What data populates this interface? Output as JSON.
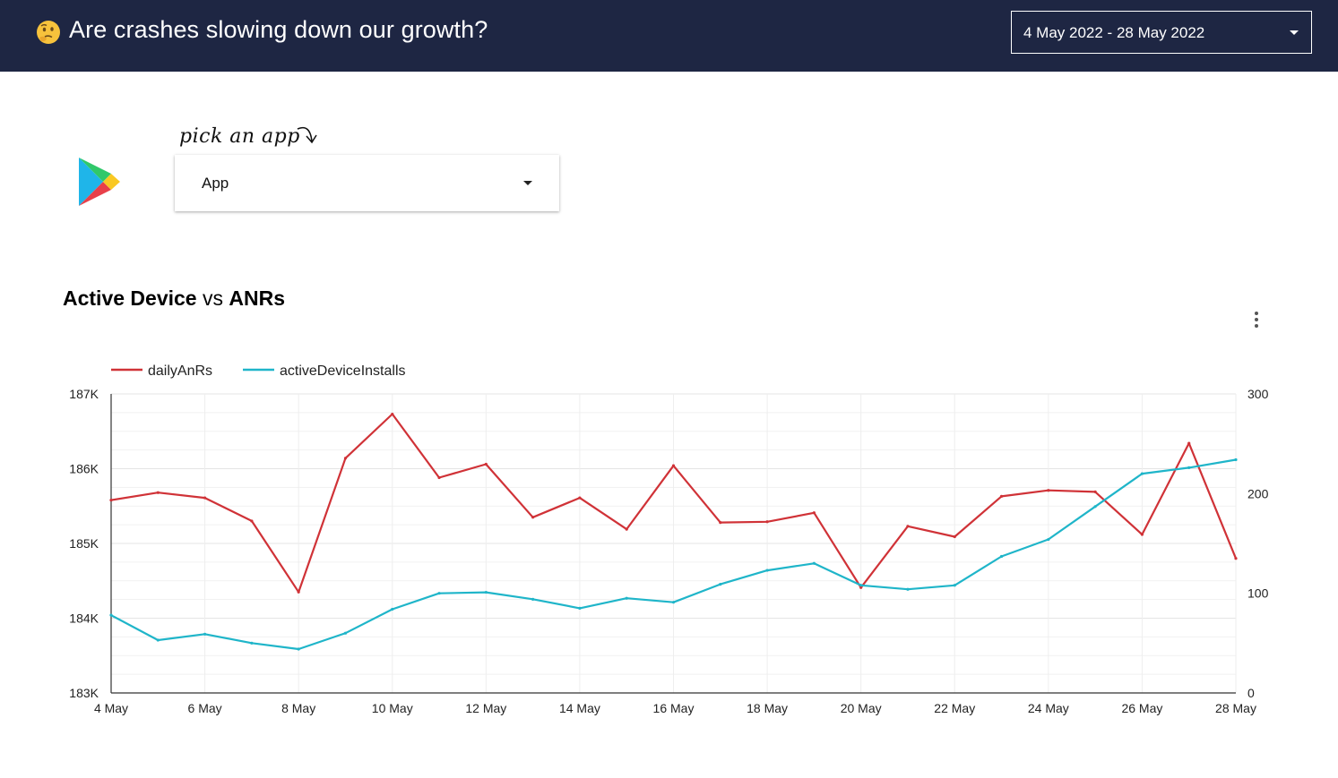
{
  "header": {
    "title": "Are crashes slowing down our growth?",
    "date_range": "4 May 2022 - 28 May 2022",
    "emoji_icon": "thinking-face-icon"
  },
  "app_picker": {
    "hint": "pick an app",
    "label": "App",
    "logo_icon": "google-play-icon"
  },
  "chart_title": {
    "part1": "Active Device",
    "part2": " vs ",
    "part3": "ANRs"
  },
  "colors": {
    "header_bg": "#1e2643",
    "anrs": "#d03237",
    "installs": "#1fb5c9"
  },
  "chart_data": {
    "type": "line",
    "x": [
      "4 May",
      "5 May",
      "6 May",
      "7 May",
      "8 May",
      "9 May",
      "10 May",
      "11 May",
      "12 May",
      "13 May",
      "14 May",
      "15 May",
      "16 May",
      "17 May",
      "18 May",
      "19 May",
      "20 May",
      "21 May",
      "22 May",
      "23 May",
      "24 May",
      "25 May",
      "26 May",
      "27 May",
      "28 May"
    ],
    "x_tick_labels": [
      "4 May",
      "6 May",
      "8 May",
      "10 May",
      "12 May",
      "14 May",
      "16 May",
      "18 May",
      "20 May",
      "22 May",
      "24 May",
      "26 May",
      "28 May"
    ],
    "series": [
      {
        "name": "dailyAnRs",
        "axis": "left",
        "color": "#d03237",
        "values": [
          185580,
          185680,
          185610,
          185300,
          184350,
          186140,
          186730,
          185880,
          186060,
          185350,
          185610,
          185190,
          186040,
          185280,
          185290,
          185410,
          184410,
          185230,
          185090,
          185630,
          185710,
          185690,
          185120,
          186340,
          184800
        ]
      },
      {
        "name": "activeDeviceInstalls",
        "axis": "right",
        "color": "#1fb5c9",
        "values": [
          78,
          53,
          59,
          50,
          44,
          60,
          84,
          100,
          101,
          94,
          85,
          95,
          91,
          109,
          123,
          130,
          108,
          104,
          108,
          137,
          154,
          187,
          220,
          226,
          234
        ]
      }
    ],
    "y_left": {
      "min": 183000,
      "max": 187000,
      "ticks": [
        183000,
        184000,
        185000,
        186000,
        187000
      ],
      "tick_labels": [
        "183K",
        "184K",
        "185K",
        "186K",
        "187K"
      ]
    },
    "y_right": {
      "min": 0,
      "max": 300,
      "ticks": [
        0,
        100,
        200,
        300
      ],
      "tick_labels": [
        "0",
        "100",
        "200",
        "300"
      ]
    },
    "grid": true,
    "legend": "top-left"
  }
}
